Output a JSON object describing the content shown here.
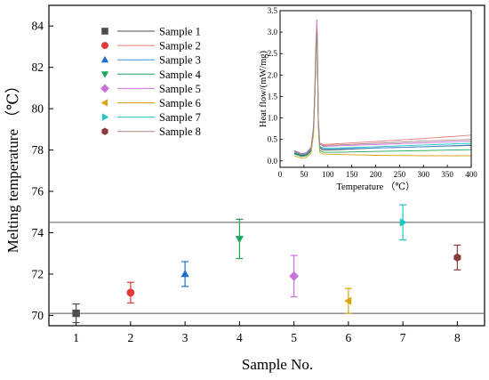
{
  "chart_data": [
    {
      "type": "scatter",
      "xlabel": "Sample No.",
      "ylabel": "Melting temperature （℃）",
      "xlim": [
        0.5,
        8.5
      ],
      "ylim": [
        69.5,
        85
      ],
      "xticks": [
        1,
        2,
        3,
        4,
        5,
        6,
        7,
        8
      ],
      "yticks": [
        70,
        72,
        74,
        76,
        78,
        80,
        82,
        84
      ],
      "reference_lines": [
        70.1,
        74.5
      ],
      "legend_position": "top-left",
      "series": [
        {
          "name": "Sample 1",
          "x": 1,
          "y": 70.1,
          "err": [
            0.45,
            0.45
          ],
          "color": "#4d4d4d",
          "marker": "square"
        },
        {
          "name": "Sample 2",
          "x": 2,
          "y": 71.1,
          "err": [
            0.5,
            0.5
          ],
          "color": "#e8363a",
          "marker": "circle"
        },
        {
          "name": "Sample 3",
          "x": 3,
          "y": 72.0,
          "err": [
            0.6,
            0.6
          ],
          "color": "#1f6fd1",
          "marker": "triangle-up"
        },
        {
          "name": "Sample 4",
          "x": 4,
          "y": 73.7,
          "err": [
            0.95,
            0.95
          ],
          "color": "#1aa65b",
          "marker": "triangle-down"
        },
        {
          "name": "Sample 5",
          "x": 5,
          "y": 71.9,
          "err": [
            1.0,
            1.0
          ],
          "color": "#c873d8",
          "marker": "diamond"
        },
        {
          "name": "Sample 6",
          "x": 6,
          "y": 70.7,
          "err": [
            0.6,
            0.6
          ],
          "color": "#d9a514",
          "marker": "triangle-left"
        },
        {
          "name": "Sample 7",
          "x": 7,
          "y": 74.5,
          "err": [
            0.85,
            0.85
          ],
          "color": "#21c4c4",
          "marker": "triangle-right"
        },
        {
          "name": "Sample 8",
          "x": 8,
          "y": 72.8,
          "err": [
            0.6,
            0.6
          ],
          "color": "#8c3c3c",
          "marker": "hexagon"
        }
      ]
    },
    {
      "type": "line",
      "xlabel": "Temperature （℃）",
      "ylabel": "Heat flow/(mW/mg)",
      "xlim": [
        0,
        400
      ],
      "ylim": [
        -0.15,
        3.5
      ],
      "xticks": [
        0,
        50,
        100,
        150,
        200,
        250,
        300,
        350,
        400
      ],
      "yticks": [
        0.0,
        0.5,
        1.0,
        1.5,
        2.0,
        2.5,
        3.0,
        3.5
      ],
      "series": [
        {
          "name": "Sample 1",
          "color": "#4d4d4d",
          "x": [
            30,
            45,
            55,
            65,
            70,
            73,
            75,
            77,
            78,
            79,
            80,
            83,
            90,
            120,
            200,
            300,
            400
          ],
          "y": [
            0.18,
            0.12,
            0.14,
            0.25,
            0.7,
            1.6,
            2.5,
            3.0,
            2.7,
            1.8,
            0.9,
            0.3,
            0.25,
            0.26,
            0.3,
            0.33,
            0.36
          ]
        },
        {
          "name": "Sample 2",
          "color": "#e8767a",
          "x": [
            30,
            45,
            55,
            65,
            70,
            73,
            75,
            77,
            78,
            79,
            80,
            83,
            90,
            120,
            200,
            300,
            400
          ],
          "y": [
            0.22,
            0.16,
            0.18,
            0.3,
            0.75,
            1.7,
            2.6,
            3.1,
            2.8,
            1.9,
            1.0,
            0.42,
            0.38,
            0.4,
            0.45,
            0.52,
            0.6
          ]
        },
        {
          "name": "Sample 3",
          "color": "#3f8fe0",
          "x": [
            30,
            45,
            55,
            65,
            70,
            73,
            75,
            77,
            78,
            79,
            80,
            83,
            90,
            120,
            200,
            300,
            400
          ],
          "y": [
            0.2,
            0.14,
            0.16,
            0.27,
            0.7,
            1.6,
            2.45,
            2.95,
            2.65,
            1.8,
            0.9,
            0.32,
            0.28,
            0.28,
            0.3,
            0.33,
            0.37
          ]
        },
        {
          "name": "Sample 4",
          "color": "#1aa65b",
          "x": [
            30,
            45,
            55,
            65,
            70,
            73,
            75,
            77,
            78,
            79,
            80,
            83,
            90,
            120,
            200,
            300,
            400
          ],
          "y": [
            0.16,
            0.1,
            0.12,
            0.22,
            0.65,
            1.55,
            2.4,
            2.9,
            2.6,
            1.7,
            0.85,
            0.25,
            0.2,
            0.2,
            0.22,
            0.24,
            0.26
          ]
        },
        {
          "name": "Sample 5",
          "color": "#c873d8",
          "x": [
            30,
            45,
            55,
            65,
            70,
            73,
            75,
            77,
            78,
            79,
            80,
            83,
            90,
            120,
            200,
            300,
            400
          ],
          "y": [
            0.24,
            0.17,
            0.19,
            0.32,
            0.8,
            1.8,
            2.75,
            3.3,
            2.9,
            2.0,
            1.0,
            0.4,
            0.34,
            0.35,
            0.38,
            0.42,
            0.46
          ]
        },
        {
          "name": "Sample 6",
          "color": "#d9a514",
          "x": [
            30,
            45,
            55,
            65,
            70,
            73,
            75,
            77,
            78,
            79,
            80,
            83,
            90,
            120,
            200,
            300,
            400
          ],
          "y": [
            0.12,
            0.06,
            0.08,
            0.18,
            0.6,
            1.5,
            2.35,
            2.85,
            2.55,
            1.65,
            0.8,
            0.2,
            0.16,
            0.15,
            0.13,
            0.12,
            0.12
          ]
        },
        {
          "name": "Sample 7",
          "color": "#21c4c4",
          "x": [
            30,
            45,
            55,
            65,
            70,
            73,
            75,
            77,
            78,
            79,
            80,
            83,
            90,
            120,
            200,
            300,
            400
          ],
          "y": [
            0.21,
            0.15,
            0.17,
            0.28,
            0.72,
            1.65,
            2.5,
            3.0,
            2.7,
            1.85,
            0.92,
            0.34,
            0.3,
            0.3,
            0.33,
            0.37,
            0.41
          ]
        },
        {
          "name": "Sample 8",
          "color": "#b08080",
          "x": [
            30,
            45,
            55,
            65,
            70,
            73,
            75,
            77,
            78,
            79,
            80,
            83,
            90,
            120,
            200,
            300,
            400
          ],
          "y": [
            0.23,
            0.16,
            0.18,
            0.3,
            0.76,
            1.72,
            2.6,
            3.12,
            2.8,
            1.9,
            0.95,
            0.38,
            0.36,
            0.37,
            0.41,
            0.46,
            0.5
          ]
        }
      ]
    }
  ]
}
